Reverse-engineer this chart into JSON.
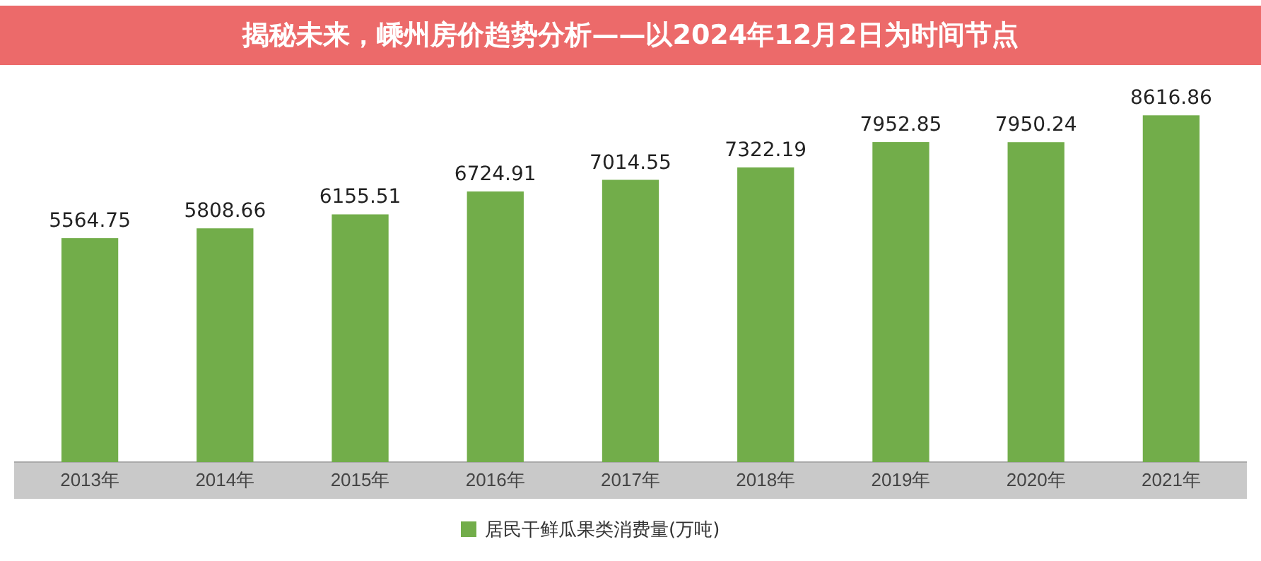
{
  "chart_data": {
    "type": "bar",
    "title": "揭秘未来，嵊州房价趋势分析——以2024年12月2日为时间节点",
    "categories": [
      "2013年",
      "2014年",
      "2015年",
      "2016年",
      "2017年",
      "2018年",
      "2019年",
      "2020年",
      "2021年"
    ],
    "series": [
      {
        "name": "居民干鲜瓜果类消费量(万吨)",
        "color": "#72ad4a",
        "values": [
          5564.75,
          5808.66,
          6155.51,
          6724.91,
          7014.55,
          7322.19,
          7952.85,
          7950.24,
          8616.86
        ]
      }
    ],
    "data_labels": true,
    "legend": "bottom",
    "grid": false
  }
}
